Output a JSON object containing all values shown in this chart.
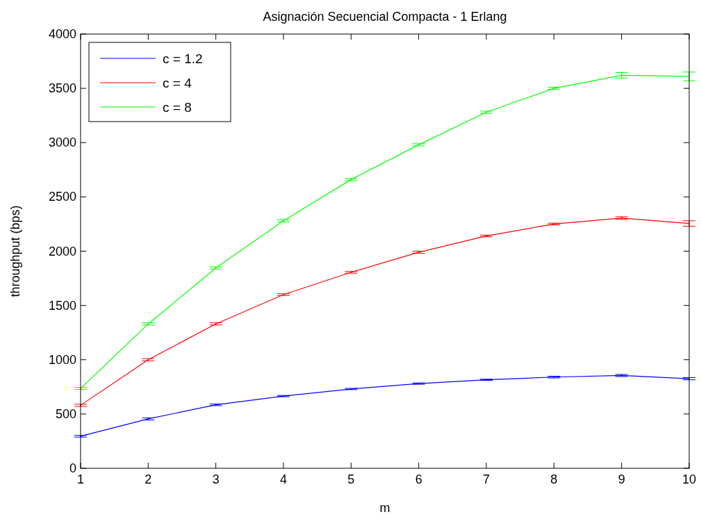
{
  "chart_data": {
    "type": "line",
    "title": "Asignación Secuencial Compacta - 1 Erlang",
    "xlabel": "m",
    "ylabel": "throughput (bps)",
    "x": [
      1,
      2,
      3,
      4,
      5,
      6,
      7,
      8,
      9,
      10
    ],
    "xlim": [
      1,
      10
    ],
    "xticks": [
      1,
      2,
      3,
      4,
      5,
      6,
      7,
      8,
      9,
      10
    ],
    "ylim": [
      0,
      4000
    ],
    "yticks": [
      0,
      500,
      1000,
      1500,
      2000,
      2500,
      3000,
      3500,
      4000
    ],
    "legend": "top left",
    "grid": false,
    "marker": "none",
    "line_style": "solid",
    "series": [
      {
        "name": "c = 1.2",
        "color": "#0000ff",
        "values": [
          295,
          455,
          585,
          665,
          730,
          780,
          815,
          840,
          855,
          825
        ],
        "errors": [
          8,
          10,
          8,
          6,
          6,
          6,
          6,
          8,
          10,
          10
        ]
      },
      {
        "name": "c = 4",
        "color": "#ff0000",
        "values": [
          580,
          1000,
          1330,
          1600,
          1805,
          1990,
          2140,
          2250,
          2305,
          2255
        ],
        "errors": [
          10,
          10,
          10,
          8,
          8,
          10,
          8,
          8,
          12,
          25
        ]
      },
      {
        "name": "c = 8",
        "color": "#00ff00",
        "values": [
          735,
          1330,
          1845,
          2280,
          2660,
          2980,
          3280,
          3500,
          3620,
          3610
        ],
        "errors": [
          10,
          10,
          10,
          10,
          10,
          10,
          10,
          10,
          25,
          40
        ]
      }
    ]
  }
}
